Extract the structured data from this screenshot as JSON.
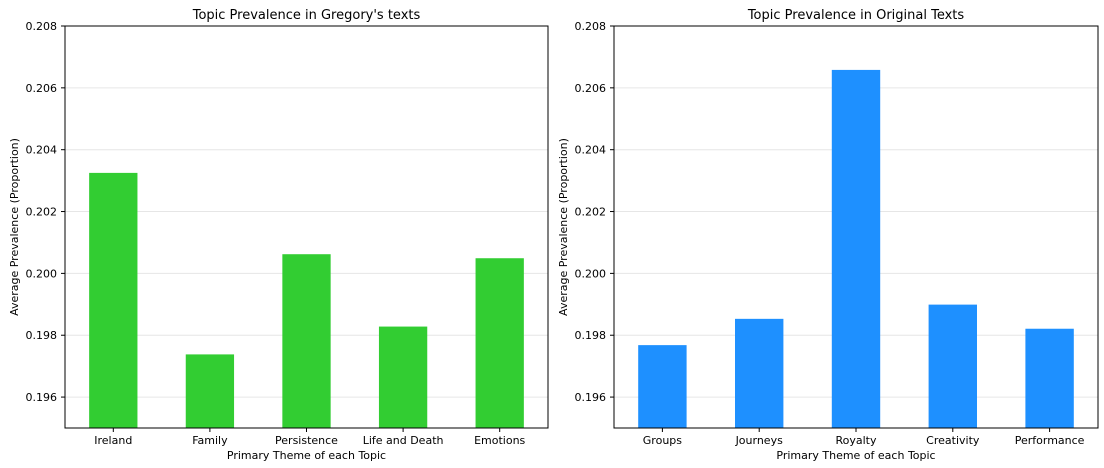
{
  "chart_data": [
    {
      "type": "bar",
      "title": "Topic Prevalence in Gregory's texts",
      "xlabel": "Primary Theme of each Topic",
      "ylabel": "Average Prevalence (Proportion)",
      "categories": [
        "Ireland",
        "Family",
        "Persistence",
        "Life and Death",
        "Emotions"
      ],
      "values": [
        0.20325,
        0.19738,
        0.20062,
        0.19828,
        0.20049
      ],
      "ylim": [
        0.195,
        0.208
      ],
      "yticks": [
        "0.196",
        "0.198",
        "0.200",
        "0.202",
        "0.204",
        "0.206",
        "0.208"
      ],
      "grid": "horizontal",
      "bar_color": "#32cd32"
    },
    {
      "type": "bar",
      "title": "Topic Prevalence in Original Texts",
      "xlabel": "Primary Theme of each Topic",
      "ylabel": "Average Prevalence (Proportion)",
      "categories": [
        "Groups",
        "Journeys",
        "Royalty",
        "Creativity",
        "Performance"
      ],
      "values": [
        0.19768,
        0.19853,
        0.20658,
        0.19899,
        0.19821
      ],
      "ylim": [
        0.195,
        0.208
      ],
      "yticks": [
        "0.196",
        "0.198",
        "0.200",
        "0.202",
        "0.204",
        "0.206",
        "0.208"
      ],
      "grid": "horizontal",
      "bar_color": "#1e90ff"
    }
  ]
}
